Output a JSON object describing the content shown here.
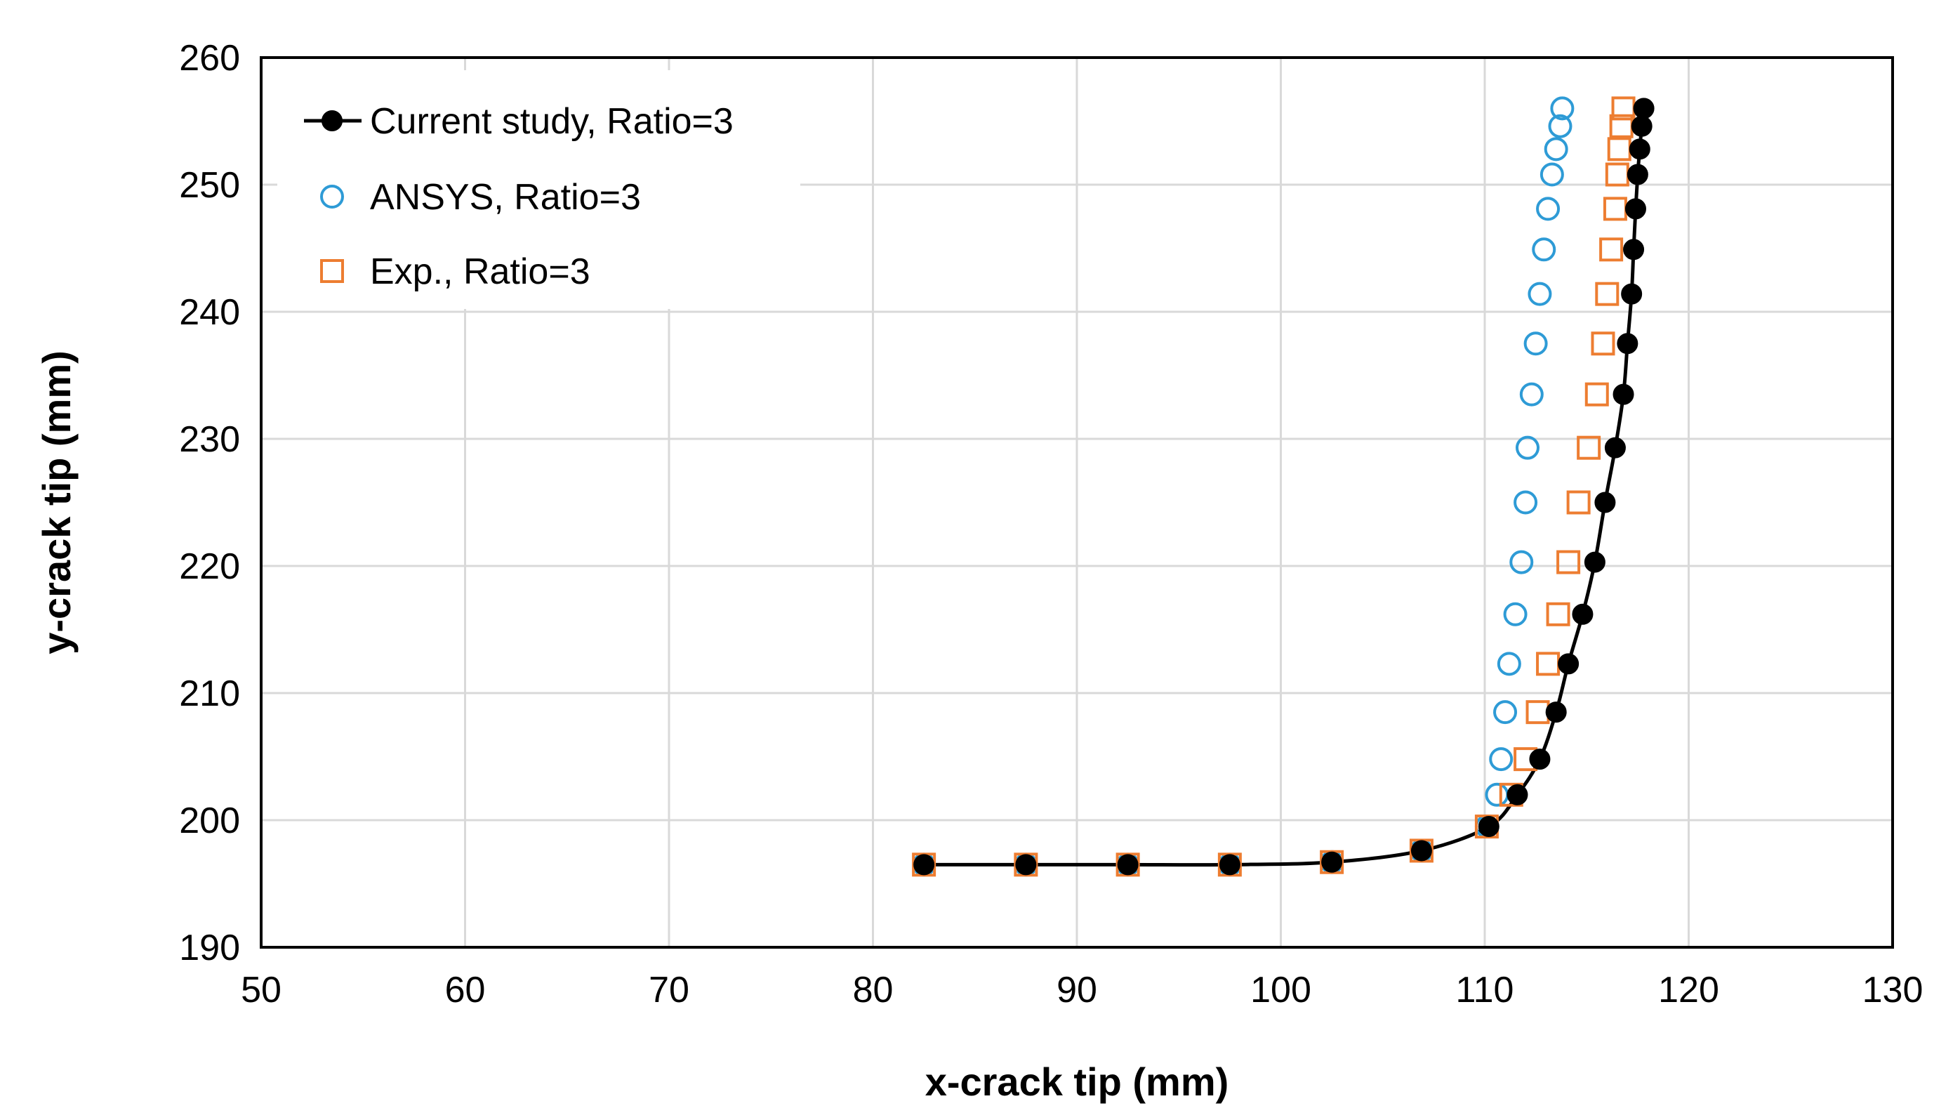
{
  "chart_data": {
    "type": "scatter",
    "title": "",
    "xlabel": "x-crack tip (mm)",
    "ylabel": "y-crack tip (mm)",
    "xlim": [
      50,
      130
    ],
    "ylim": [
      190,
      260
    ],
    "xticks": [
      50,
      60,
      70,
      80,
      90,
      100,
      110,
      120,
      130
    ],
    "yticks": [
      190,
      200,
      210,
      220,
      230,
      240,
      250,
      260
    ],
    "grid": true,
    "legend_position": "top-left",
    "series": [
      {
        "name": "Current study, Ratio=3",
        "marker": "filled-circle",
        "line": true,
        "color": "#000000",
        "x": [
          82.5,
          87.5,
          92.5,
          97.5,
          102.5,
          106.9,
          110.2,
          111.6,
          112.7,
          113.5,
          114.1,
          114.8,
          115.4,
          115.9,
          116.4,
          116.8,
          117.0,
          117.2,
          117.3,
          117.4,
          117.5,
          117.6,
          117.7,
          117.8
        ],
        "y": [
          196.5,
          196.5,
          196.5,
          196.5,
          196.7,
          197.6,
          199.5,
          202.0,
          204.8,
          208.5,
          212.3,
          216.2,
          220.3,
          225.0,
          229.3,
          233.5,
          237.5,
          241.4,
          244.9,
          248.1,
          250.8,
          252.8,
          254.6,
          256.0
        ]
      },
      {
        "name": "ANSYS, Ratio=3",
        "marker": "open-circle",
        "line": false,
        "color": "#2E9BD6",
        "x": [
          82.5,
          87.5,
          92.5,
          97.5,
          102.5,
          106.9,
          110.1,
          110.6,
          110.8,
          111.0,
          111.2,
          111.5,
          111.8,
          112.0,
          112.1,
          112.3,
          112.5,
          112.7,
          112.9,
          113.1,
          113.3,
          113.5,
          113.7,
          113.8
        ],
        "y": [
          196.5,
          196.5,
          196.5,
          196.5,
          196.7,
          197.6,
          199.5,
          202.0,
          204.8,
          208.5,
          212.3,
          216.2,
          220.3,
          225.0,
          229.3,
          233.5,
          237.5,
          241.4,
          244.9,
          248.1,
          250.8,
          252.8,
          254.6,
          256.0
        ]
      },
      {
        "name": "Exp., Ratio=3",
        "marker": "open-square",
        "line": false,
        "color": "#ED7D31",
        "x": [
          82.5,
          87.5,
          92.5,
          97.5,
          102.5,
          106.9,
          110.1,
          111.3,
          112.0,
          112.6,
          113.1,
          113.6,
          114.1,
          114.6,
          115.1,
          115.5,
          115.8,
          116.0,
          116.2,
          116.4,
          116.5,
          116.6,
          116.7,
          116.8
        ],
        "y": [
          196.5,
          196.5,
          196.5,
          196.5,
          196.7,
          197.6,
          199.5,
          202.0,
          204.8,
          208.5,
          212.3,
          216.2,
          220.3,
          225.0,
          229.3,
          233.5,
          237.5,
          241.4,
          244.9,
          248.1,
          250.8,
          252.8,
          254.6,
          256.0
        ]
      }
    ]
  }
}
